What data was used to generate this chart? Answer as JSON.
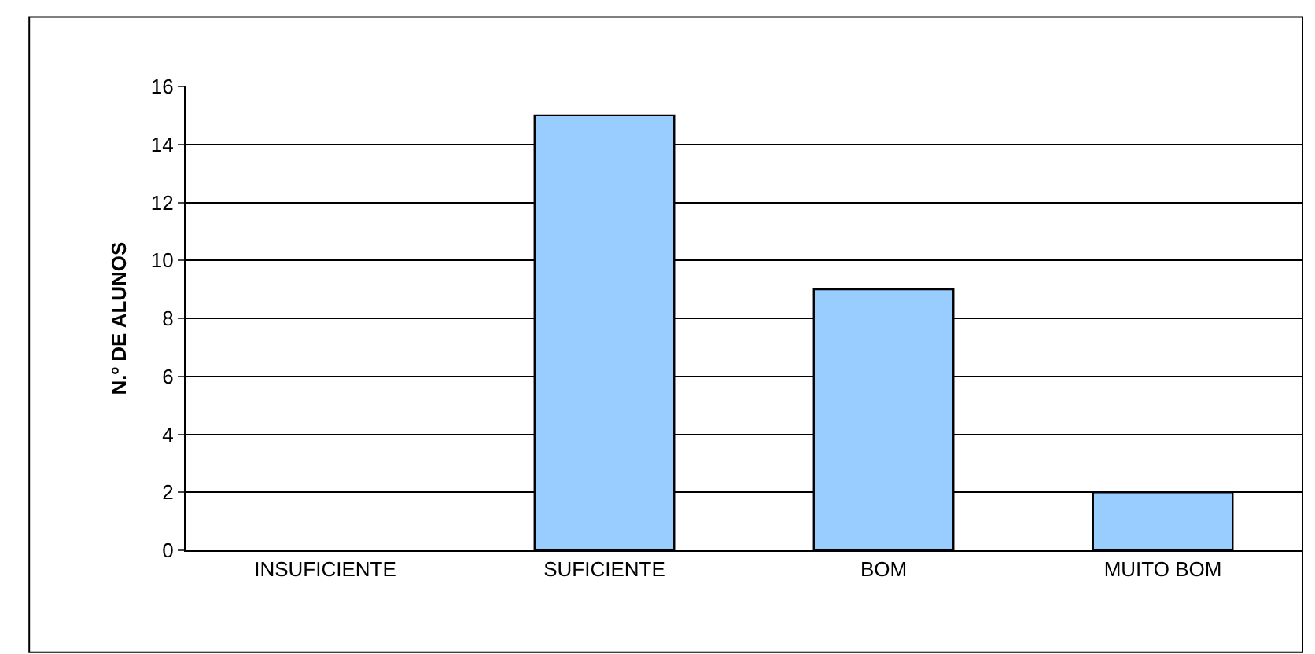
{
  "chart_data": {
    "type": "bar",
    "ylabel": "N.º DE ALUNOS",
    "categories": [
      "INSUFICIENTE",
      "SUFICIENTE",
      "BOM",
      "MUITO BOM"
    ],
    "values": [
      0,
      15,
      9,
      2
    ],
    "color": "#99ccff",
    "ylim": [
      0,
      16
    ],
    "yticks": [
      0,
      2,
      4,
      6,
      8,
      10,
      12,
      14,
      16
    ],
    "grid": "y",
    "legend": false
  }
}
